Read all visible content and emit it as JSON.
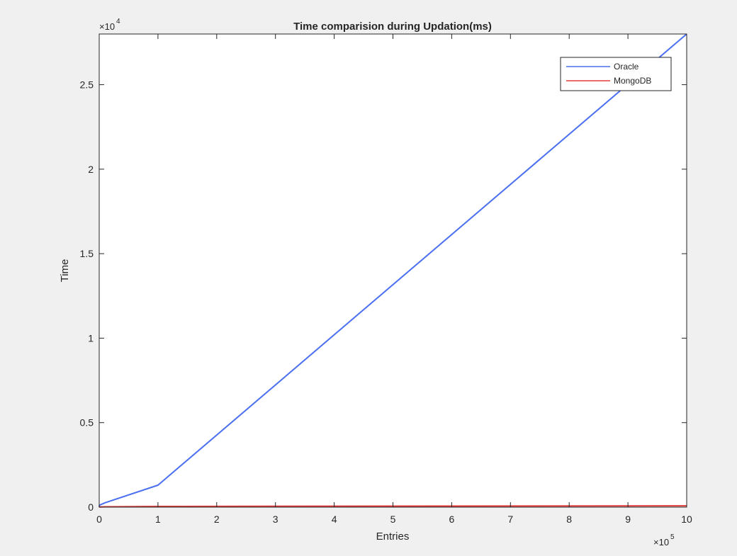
{
  "chart_data": {
    "type": "line",
    "title": "Time comparision during Updation(ms)",
    "xlabel": "Entries",
    "ylabel": "Time",
    "x_exponent_label": "×10",
    "x_exponent": "5",
    "y_exponent_label": "×10",
    "y_exponent": "4",
    "xlim": [
      0,
      1000000
    ],
    "ylim": [
      0,
      28000
    ],
    "x_ticks": [
      0,
      100000,
      200000,
      300000,
      400000,
      500000,
      600000,
      700000,
      800000,
      900000,
      1000000
    ],
    "x_tick_labels": [
      "0",
      "1",
      "2",
      "3",
      "4",
      "5",
      "6",
      "7",
      "8",
      "9",
      "10"
    ],
    "y_ticks": [
      0,
      5000,
      10000,
      15000,
      20000,
      25000
    ],
    "y_tick_labels": [
      "0",
      "0.5",
      "1",
      "1.5",
      "2",
      "2.5"
    ],
    "grid": false,
    "legend_position": "top-right",
    "series": [
      {
        "name": "Oracle",
        "color": "#4a6ff0",
        "x": [
          0,
          100,
          1000,
          10000,
          100000,
          1000000
        ],
        "y": [
          20,
          60,
          120,
          260,
          1300,
          28000
        ]
      },
      {
        "name": "MongoDB",
        "color": "#e03c3c",
        "x": [
          0,
          100,
          1000,
          10000,
          100000,
          1000000
        ],
        "y": [
          2,
          5,
          10,
          20,
          40,
          80
        ]
      }
    ]
  }
}
